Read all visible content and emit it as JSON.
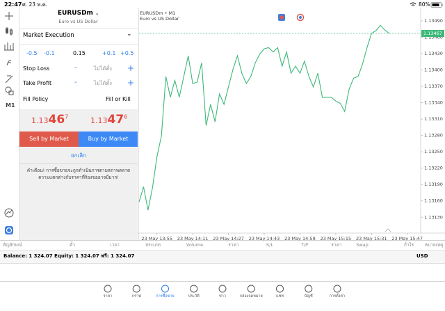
{
  "status_bar": {
    "time": "22:47",
    "date": "ศ. 23 พ.ค.",
    "battery": "80%"
  },
  "toolbar": {
    "timeframe": "M1"
  },
  "order": {
    "symbol": "EURUSDm",
    "description": "Euro vs US Dollar",
    "execution": "Market Execution",
    "volume_steps": [
      "-0.5",
      "-0.1",
      "+0.1",
      "+0.5"
    ],
    "volume": 0.15,
    "stop_loss": {
      "label": "Stop Loss",
      "minus": "-",
      "value": "ไม่ได้ตั้ง",
      "plus": "+"
    },
    "take_profit": {
      "label": "Take Profit",
      "minus": "-",
      "value": "ไม่ได้ตั้ง",
      "plus": "+"
    },
    "fill_policy": {
      "label": "Fill Policy",
      "value": "Fill or Kill"
    },
    "bid": {
      "base": "1.13",
      "pips": "46",
      "point": "7"
    },
    "ask": {
      "base": "1.13",
      "pips": "47",
      "point": "6"
    },
    "sell_button": "Sell by Market",
    "buy_button": "Buy by Market",
    "cancel": "ยกเลิก",
    "warning": [
      "คำเตือน! การซื้อขายจะถูกดำเนินการตามสภาพตลาด",
      "ความแตกต่างกับราคาที่ร้องขออาจมีมาก!"
    ]
  },
  "chart_data": {
    "type": "line",
    "title": "EURUSDm • M1",
    "subtitle": "Euro vs US Dollar",
    "color": "#3cb878",
    "categories": [
      null,
      null,
      null,
      null,
      "23 May 13:55",
      null,
      null,
      null,
      null,
      null,
      null,
      null,
      "23 May 14:11",
      null,
      null,
      null,
      null,
      null,
      null,
      null,
      "23 May 14:27",
      null,
      null,
      null,
      null,
      null,
      null,
      null,
      "23 May 14:43",
      null,
      null,
      null,
      null,
      null,
      null,
      null,
      "23 May 14:59",
      null,
      null,
      null,
      null,
      null,
      null,
      null,
      "23 May 15:15",
      null,
      null,
      null,
      null,
      null,
      null,
      null,
      "23 May 15:31",
      null,
      null,
      null,
      null,
      null,
      null,
      null,
      "23 May 15:47",
      null,
      null,
      null
    ],
    "values": [
      1.13158,
      1.13186,
      1.13143,
      1.13184,
      1.13241,
      1.13279,
      1.13388,
      1.1335,
      1.13381,
      1.1335,
      1.13388,
      1.13426,
      1.13375,
      1.13378,
      1.13413,
      1.13298,
      1.13337,
      1.13305,
      1.13356,
      1.13337,
      1.13369,
      1.13401,
      1.13426,
      1.13394,
      1.13375,
      1.13388,
      1.13413,
      1.13429,
      1.13439,
      1.13441,
      1.13433,
      1.13441,
      1.13407,
      1.13433,
      1.13394,
      1.13407,
      1.13394,
      1.13416,
      1.13388,
      1.13369,
      1.13394,
      1.1335,
      1.1335,
      1.1335,
      1.13343,
      1.13339,
      1.13324,
      1.13365,
      1.13385,
      1.13388,
      1.13411,
      1.13441,
      1.13467,
      1.13472,
      1.13482,
      1.13473,
      1.13467,
      null,
      null,
      null,
      null,
      null,
      null,
      null
    ],
    "last_price": 1.13467,
    "ylim": [
      1.13101,
      1.13513
    ],
    "yticks": [
      {
        "value": 1.1313,
        "label": "1.13130"
      },
      {
        "value": 1.1316,
        "label": "1.13160"
      },
      {
        "value": 1.1319,
        "label": "1.13190"
      },
      {
        "value": 1.1322,
        "label": "1.13220"
      },
      {
        "value": 1.1325,
        "label": "1.13250"
      },
      {
        "value": 1.1328,
        "label": "1.13280"
      },
      {
        "value": 1.1331,
        "label": "1.13310"
      },
      {
        "value": 1.1334,
        "label": "1.13340"
      },
      {
        "value": 1.1337,
        "label": "1.13370"
      },
      {
        "value": 1.134,
        "label": "1.13400"
      },
      {
        "value": 1.1343,
        "label": "1.13430"
      },
      {
        "value": 1.1346,
        "label": "1.13460"
      },
      {
        "value": 1.1349,
        "label": "1.13490"
      }
    ],
    "grid": false
  },
  "positions": {
    "columns": [
      "สัญลักษณ์",
      "ตั๋ว",
      "เวลา",
      "ประเภท",
      "Volume",
      "ราคา",
      "S/L",
      "T/P",
      "ราคา",
      "Swap",
      "กำไร",
      "หมายเหตุ"
    ]
  },
  "account": {
    "summary": "Balance: 1 324.07 Equity: 1 324.07 ฟรี: 1 324.07",
    "currency": "USD"
  },
  "tabs": [
    "ราคา",
    "กราฟ",
    "การซื้อขาย",
    "ประวัติ",
    "ข่าว",
    "กล่องจดหมาย",
    "แชท",
    "บัญชี",
    "การตั้งค่า"
  ]
}
